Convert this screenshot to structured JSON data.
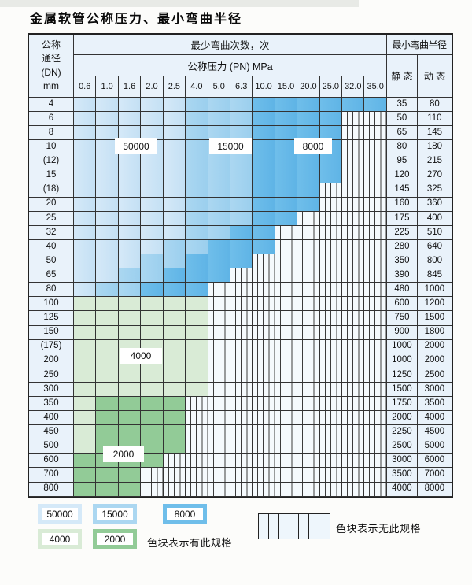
{
  "title": "金属软管公称压力、最小弯曲半径",
  "colors": {
    "blue_light": "#d5e9f8",
    "blue_light2": "#c4e0f4",
    "blue_medium": "#abd7f1",
    "blue_medium2": "#9bcfee",
    "blue_dark": "#6fbeea",
    "blue_dark2": "#5fb4e6",
    "green_light": "#d9ebd6",
    "green_dark": "#92cb97",
    "label_cell_bg": "#e9f2fa",
    "grid_line": "#333333"
  },
  "table": {
    "header": {
      "dn_header": "公称\n通径\n(DN)\nmm",
      "cycles_title": "最少弯曲次数，次",
      "pressure_title": "公称压力 (PN) MPa",
      "radius_title": "最小弯曲半径",
      "static_label": "静 态",
      "dynamic_label": "动 态",
      "pressure_columns": [
        "0.6",
        "1.0",
        "1.6",
        "2.0",
        "2.5",
        "4.0",
        "5.0",
        "6.3",
        "10.0",
        "15.0",
        "20.0",
        "25.0",
        "32.0",
        "35.0"
      ]
    },
    "rows": [
      {
        "dn": "4",
        "static": "35",
        "dynamic": "80",
        "palette": "blue",
        "colored_end": 13,
        "light_end": 4,
        "medium_end": 7
      },
      {
        "dn": "6",
        "static": "50",
        "dynamic": "110",
        "palette": "blue",
        "colored_end": 11,
        "light_end": 4,
        "medium_end": 7
      },
      {
        "dn": "8",
        "static": "65",
        "dynamic": "145",
        "palette": "blue",
        "colored_end": 11,
        "light_end": 4,
        "medium_end": 7
      },
      {
        "dn": "10",
        "static": "80",
        "dynamic": "180",
        "palette": "blue",
        "colored_end": 11,
        "light_end": 4,
        "medium_end": 7
      },
      {
        "dn": "(12)",
        "static": "95",
        "dynamic": "215",
        "palette": "blue",
        "colored_end": 11,
        "light_end": 4,
        "medium_end": 7
      },
      {
        "dn": "15",
        "static": "120",
        "dynamic": "270",
        "palette": "blue",
        "colored_end": 11,
        "light_end": 4,
        "medium_end": 7
      },
      {
        "dn": "(18)",
        "static": "145",
        "dynamic": "325",
        "palette": "blue",
        "colored_end": 10,
        "light_end": 4,
        "medium_end": 7
      },
      {
        "dn": "20",
        "static": "160",
        "dynamic": "360",
        "palette": "blue",
        "colored_end": 10,
        "light_end": 4,
        "medium_end": 7
      },
      {
        "dn": "25",
        "static": "175",
        "dynamic": "400",
        "palette": "blue",
        "colored_end": 9,
        "light_end": 4,
        "medium_end": 7
      },
      {
        "dn": "32",
        "static": "225",
        "dynamic": "510",
        "palette": "blue",
        "colored_end": 8,
        "light_end": 4,
        "medium_end": 6
      },
      {
        "dn": "40",
        "static": "280",
        "dynamic": "640",
        "palette": "blue",
        "colored_end": 8,
        "light_end": 3,
        "medium_end": 5
      },
      {
        "dn": "50",
        "static": "350",
        "dynamic": "800",
        "palette": "blue",
        "colored_end": 7,
        "light_end": 2,
        "medium_end": 4
      },
      {
        "dn": "65",
        "static": "390",
        "dynamic": "845",
        "palette": "blue",
        "colored_end": 6,
        "light_end": 1,
        "medium_end": 3
      },
      {
        "dn": "80",
        "static": "480",
        "dynamic": "1000",
        "palette": "blue",
        "colored_end": 5,
        "light_end": 0,
        "medium_end": 2
      },
      {
        "dn": "100",
        "static": "600",
        "dynamic": "1200",
        "palette": "green",
        "colored_end": 5,
        "light_end": 5,
        "medium_end": 5
      },
      {
        "dn": "125",
        "static": "750",
        "dynamic": "1500",
        "palette": "green",
        "colored_end": 5,
        "light_end": 5,
        "medium_end": 5
      },
      {
        "dn": "150",
        "static": "900",
        "dynamic": "1800",
        "palette": "green",
        "colored_end": 5,
        "light_end": 5,
        "medium_end": 5
      },
      {
        "dn": "(175)",
        "static": "1000",
        "dynamic": "2000",
        "palette": "green",
        "colored_end": 5,
        "light_end": 5,
        "medium_end": 5
      },
      {
        "dn": "200",
        "static": "1000",
        "dynamic": "2000",
        "palette": "green",
        "colored_end": 5,
        "light_end": 5,
        "medium_end": 5
      },
      {
        "dn": "250",
        "static": "1250",
        "dynamic": "2500",
        "palette": "green",
        "colored_end": 5,
        "light_end": 5,
        "medium_end": 5
      },
      {
        "dn": "300",
        "static": "1500",
        "dynamic": "3000",
        "palette": "green",
        "colored_end": 5,
        "light_end": 5,
        "medium_end": 5
      },
      {
        "dn": "350",
        "static": "1750",
        "dynamic": "3500",
        "palette": "green",
        "colored_end": 4,
        "light_end": 0,
        "medium_end": 4
      },
      {
        "dn": "400",
        "static": "2000",
        "dynamic": "4000",
        "palette": "green",
        "colored_end": 4,
        "light_end": 0,
        "medium_end": 4
      },
      {
        "dn": "450",
        "static": "2250",
        "dynamic": "4500",
        "palette": "green",
        "colored_end": 4,
        "light_end": 0,
        "medium_end": 4
      },
      {
        "dn": "500",
        "static": "2500",
        "dynamic": "5000",
        "palette": "green",
        "colored_end": 4,
        "light_end": 0,
        "medium_end": 4
      },
      {
        "dn": "600",
        "static": "3000",
        "dynamic": "6000",
        "palette": "green",
        "colored_end": 3,
        "light_end": -1,
        "medium_end": 3
      },
      {
        "dn": "700",
        "static": "3500",
        "dynamic": "7000",
        "palette": "green",
        "colored_end": 2,
        "light_end": -1,
        "medium_end": 2
      },
      {
        "dn": "800",
        "static": "4000",
        "dynamic": "8000",
        "palette": "green",
        "colored_end": 2,
        "light_end": -1,
        "medium_end": 2
      }
    ]
  },
  "overlay_labels": {
    "cycles_50000": "50000",
    "cycles_15000": "15000",
    "cycles_8000": "8000",
    "cycles_4000": "4000",
    "cycles_2000": "2000"
  },
  "legend": {
    "items": [
      {
        "text": "50000",
        "swatch": "blue-light"
      },
      {
        "text": "15000",
        "swatch": "blue-medium"
      },
      {
        "text": "8000",
        "swatch": "blue-dark"
      },
      {
        "text": "4000",
        "swatch": "green-light"
      },
      {
        "text": "2000",
        "swatch": "green-dark"
      }
    ],
    "available_text": "色块表示有此规格",
    "unavailable_text": "色块表示无此规格"
  }
}
